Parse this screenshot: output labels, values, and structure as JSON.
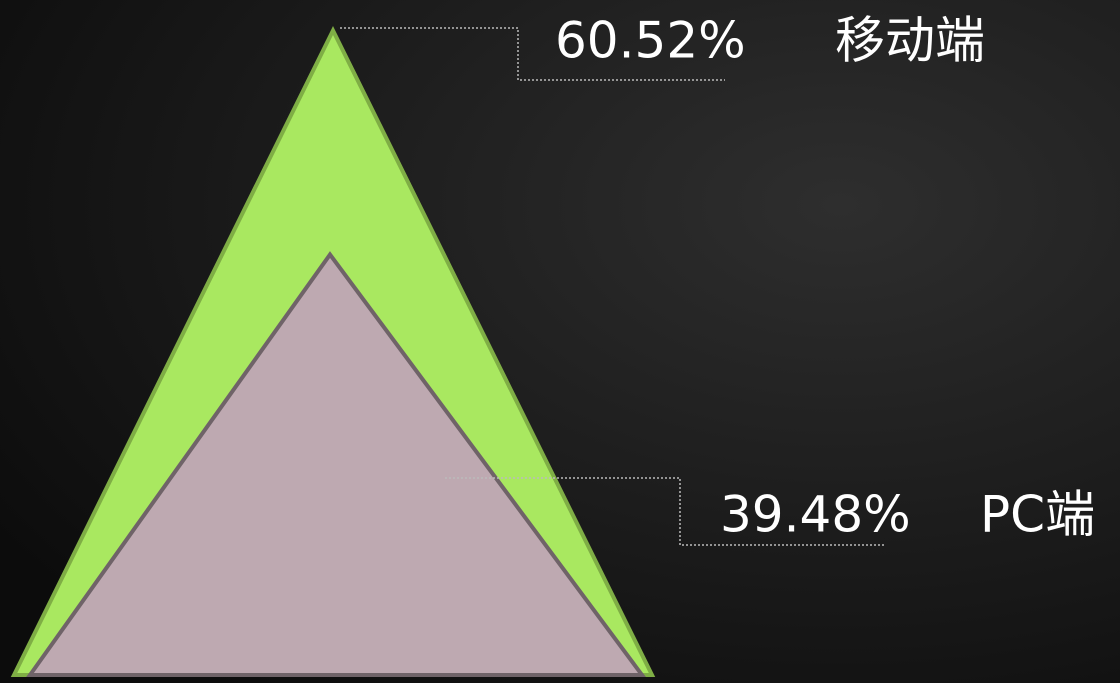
{
  "chart_data": {
    "type": "triangle",
    "categories": [
      "移动端",
      "PC端"
    ],
    "values": [
      60.52,
      39.48
    ],
    "value_labels": [
      "60.52%",
      "39.48%"
    ],
    "colors": [
      "#a9e860",
      "#bea9b1"
    ]
  }
}
